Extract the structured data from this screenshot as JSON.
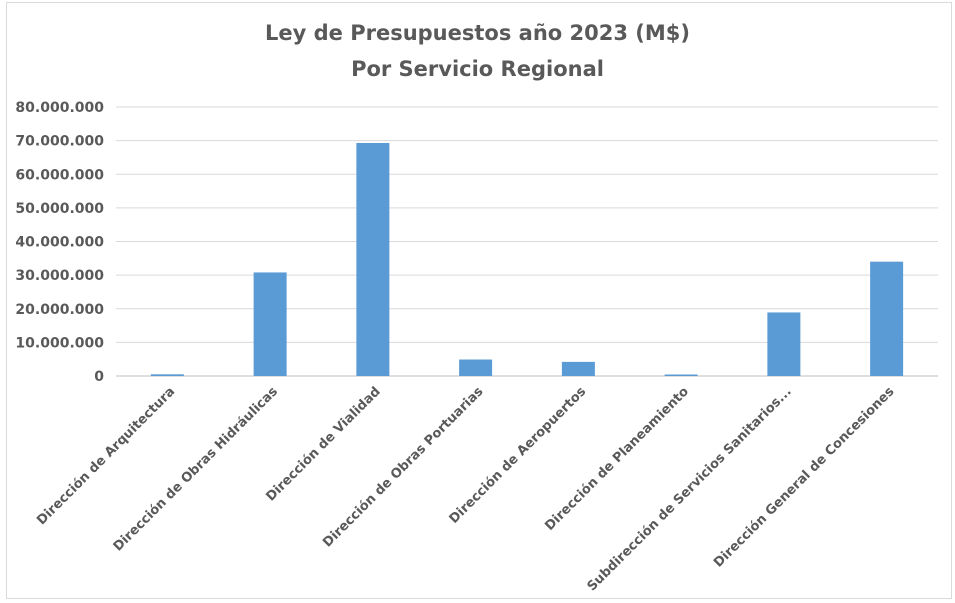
{
  "chart_data": {
    "type": "bar",
    "title": "Ley de Presupuestos año 2023 (M$)",
    "subtitle": "Por Servicio Regional",
    "xlabel": "",
    "ylabel": "",
    "categories": [
      "Dirección de Arquitectura",
      "Dirección de Obras Hidráulicas",
      "Dirección de Vialidad",
      "Dirección de Obras Portuarias",
      "Dirección de Aeropuertos",
      "Dirección de Planeamiento",
      "Subdirección de Servicios Sanitarios...",
      "Dirección General de Concesiones"
    ],
    "values": [
      500000,
      30800000,
      69300000,
      4900000,
      4200000,
      300000,
      18900000,
      34000000
    ],
    "ylim": [
      0,
      80000000
    ],
    "yticks": [
      "0",
      "10.000.000",
      "20.000.000",
      "30.000.000",
      "40.000.000",
      "50.000.000",
      "60.000.000",
      "70.000.000",
      "80.000.000"
    ],
    "ytick_values": [
      0,
      10000000,
      20000000,
      30000000,
      40000000,
      50000000,
      60000000,
      70000000,
      80000000
    ],
    "grid": true,
    "legend": "none",
    "bar_color": "#5b9bd5",
    "grid_color": "#d9d9d9"
  }
}
